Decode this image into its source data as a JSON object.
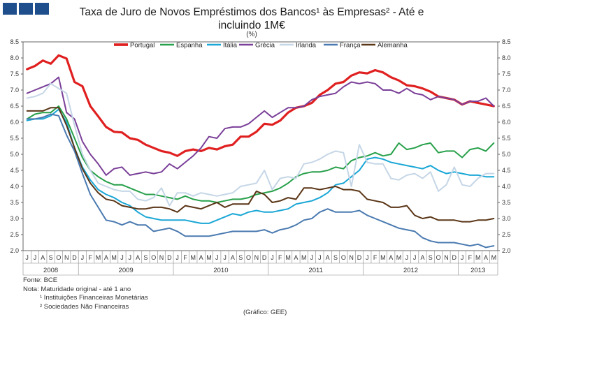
{
  "header": {
    "title_line1": "Taxa de Juro de Novos Empréstimos dos Bancos¹ às Empresas² - Até e",
    "title_line2": "incluindo 1M€",
    "unit": "(%)"
  },
  "notes": {
    "source": "Fonte: BCE",
    "note": "Nota: Maturidade original - até 1 ano",
    "footnote1": "¹ Instituições Financeiras Monetárias",
    "footnote2": "² Sociedades Não Financeiras",
    "credit": "(Gráfico:  GEE)"
  },
  "chart_data": {
    "type": "line",
    "title": "Taxa de Juro de Novos Empréstimos dos Bancos às Empresas - Até e incluindo 1M€",
    "ylabel": "(%)",
    "ylim": [
      2.0,
      8.5
    ],
    "yticks": [
      "2.0",
      "2.5",
      "3.0",
      "3.5",
      "4.0",
      "4.5",
      "5.0",
      "5.5",
      "6.0",
      "6.5",
      "7.0",
      "7.5",
      "8.0",
      "8.5"
    ],
    "month_labels": [
      "J",
      "J",
      "A",
      "S",
      "O",
      "N",
      "D",
      "J",
      "F",
      "M",
      "A",
      "M",
      "J",
      "J",
      "A",
      "S",
      "O",
      "N",
      "D",
      "J",
      "F",
      "M",
      "A",
      "M",
      "J",
      "J",
      "A",
      "S",
      "O",
      "N",
      "D",
      "J",
      "F",
      "M",
      "A",
      "M",
      "J",
      "J",
      "A",
      "S",
      "O",
      "N",
      "D",
      "J",
      "F",
      "M",
      "A",
      "M",
      "J",
      "J",
      "A",
      "S",
      "O",
      "N",
      "D",
      "J",
      "F",
      "M",
      "A",
      "M"
    ],
    "years": [
      {
        "label": "2008",
        "start": 0,
        "end": 6
      },
      {
        "label": "2009",
        "start": 7,
        "end": 18
      },
      {
        "label": "2010",
        "start": 19,
        "end": 30
      },
      {
        "label": "2011",
        "start": 31,
        "end": 42
      },
      {
        "label": "2012",
        "start": 43,
        "end": 54
      },
      {
        "label": "2013",
        "start": 55,
        "end": 59
      }
    ],
    "legend_position": "top",
    "series": [
      {
        "name": "Portugal",
        "color": "#e02020",
        "width": 3.2,
        "values": [
          7.65,
          7.75,
          7.92,
          7.82,
          8.08,
          7.98,
          7.25,
          7.12,
          6.5,
          6.18,
          5.85,
          5.7,
          5.68,
          5.5,
          5.45,
          5.3,
          5.2,
          5.1,
          5.05,
          4.95,
          5.1,
          5.15,
          5.1,
          5.2,
          5.15,
          5.25,
          5.3,
          5.55,
          5.55,
          5.7,
          5.95,
          5.92,
          6.05,
          6.3,
          6.45,
          6.5,
          6.6,
          6.85,
          7.0,
          7.2,
          7.25,
          7.45,
          7.55,
          7.52,
          7.62,
          7.55,
          7.4,
          7.3,
          7.15,
          7.12,
          7.05,
          6.95,
          6.8,
          6.75,
          6.7,
          6.55,
          6.65,
          6.6,
          6.55,
          6.5
        ]
      },
      {
        "name": "Espanha",
        "color": "#27a04a",
        "width": 2,
        "values": [
          6.1,
          6.25,
          6.3,
          6.3,
          6.5,
          6.1,
          5.5,
          4.9,
          4.5,
          4.3,
          4.15,
          4.05,
          4.05,
          3.95,
          3.85,
          3.75,
          3.75,
          3.7,
          3.65,
          3.6,
          3.7,
          3.6,
          3.55,
          3.55,
          3.5,
          3.55,
          3.6,
          3.6,
          3.65,
          3.75,
          3.8,
          3.85,
          3.95,
          4.1,
          4.3,
          4.4,
          4.45,
          4.45,
          4.5,
          4.6,
          4.55,
          4.8,
          4.9,
          4.95,
          5.05,
          4.95,
          5.0,
          5.35,
          5.15,
          5.2,
          5.3,
          5.35,
          5.05,
          5.1,
          5.1,
          4.9,
          5.15,
          5.2,
          5.1,
          5.35
        ]
      },
      {
        "name": "Itália",
        "color": "#1aa7d6",
        "width": 2,
        "values": [
          6.05,
          6.1,
          6.1,
          6.2,
          6.4,
          6.0,
          5.2,
          4.6,
          4.2,
          3.9,
          3.75,
          3.65,
          3.5,
          3.4,
          3.2,
          3.05,
          3.0,
          2.95,
          2.95,
          2.95,
          2.95,
          2.9,
          2.85,
          2.85,
          2.95,
          3.05,
          3.15,
          3.1,
          3.2,
          3.25,
          3.2,
          3.2,
          3.25,
          3.3,
          3.45,
          3.5,
          3.55,
          3.65,
          3.8,
          4.05,
          4.1,
          4.3,
          4.5,
          4.85,
          4.9,
          4.85,
          4.75,
          4.7,
          4.65,
          4.6,
          4.55,
          4.65,
          4.5,
          4.4,
          4.45,
          4.4,
          4.35,
          4.35,
          4.3,
          4.3
        ]
      },
      {
        "name": "Grécia",
        "color": "#7a3f98",
        "width": 2,
        "values": [
          6.9,
          7.0,
          7.1,
          7.2,
          7.4,
          6.3,
          6.1,
          5.4,
          5.0,
          4.7,
          4.35,
          4.55,
          4.6,
          4.35,
          4.4,
          4.45,
          4.4,
          4.45,
          4.7,
          4.55,
          4.75,
          4.95,
          5.2,
          5.55,
          5.5,
          5.8,
          5.85,
          5.85,
          5.95,
          6.15,
          6.35,
          6.15,
          6.3,
          6.45,
          6.45,
          6.5,
          6.7,
          6.8,
          6.85,
          6.9,
          7.1,
          7.25,
          7.2,
          7.25,
          7.2,
          7.0,
          7.0,
          6.9,
          7.05,
          6.9,
          6.85,
          6.7,
          6.8,
          6.75,
          6.7,
          6.55,
          6.65,
          6.65,
          6.75,
          6.5
        ]
      },
      {
        "name": "Irlanda",
        "color": "#c5d6e6",
        "width": 2,
        "values": [
          6.75,
          6.8,
          6.9,
          7.2,
          7.05,
          6.9,
          5.9,
          5.0,
          4.5,
          4.1,
          4.0,
          3.9,
          3.85,
          3.85,
          3.6,
          3.55,
          3.65,
          3.95,
          3.4,
          3.8,
          3.8,
          3.7,
          3.8,
          3.75,
          3.7,
          3.75,
          3.8,
          4.0,
          4.05,
          4.1,
          4.5,
          3.9,
          4.25,
          4.3,
          4.25,
          4.7,
          4.75,
          4.85,
          5.0,
          5.1,
          5.05,
          4.0,
          5.3,
          4.75,
          4.7,
          4.7,
          4.25,
          4.2,
          4.35,
          4.4,
          4.25,
          4.45,
          3.85,
          4.05,
          4.6,
          4.05,
          4.0,
          4.25,
          4.4,
          4.4
        ]
      },
      {
        "name": "França",
        "color": "#4a7ab0",
        "width": 2,
        "values": [
          6.1,
          6.1,
          6.15,
          6.25,
          6.2,
          5.6,
          5.1,
          4.4,
          3.75,
          3.35,
          2.95,
          2.9,
          2.8,
          2.9,
          2.8,
          2.8,
          2.6,
          2.65,
          2.7,
          2.6,
          2.45,
          2.45,
          2.45,
          2.45,
          2.5,
          2.55,
          2.6,
          2.6,
          2.6,
          2.6,
          2.65,
          2.55,
          2.65,
          2.7,
          2.8,
          2.95,
          3.0,
          3.2,
          3.3,
          3.2,
          3.2,
          3.2,
          3.25,
          3.1,
          3.0,
          2.9,
          2.8,
          2.7,
          2.65,
          2.6,
          2.4,
          2.3,
          2.25,
          2.25,
          2.25,
          2.2,
          2.15,
          2.2,
          2.1,
          2.15
        ]
      },
      {
        "name": "Alemanha",
        "color": "#5a3516",
        "width": 2,
        "values": [
          6.35,
          6.35,
          6.35,
          6.45,
          6.45,
          5.9,
          5.2,
          4.55,
          4.1,
          3.8,
          3.6,
          3.55,
          3.4,
          3.35,
          3.3,
          3.3,
          3.35,
          3.35,
          3.3,
          3.2,
          3.4,
          3.35,
          3.3,
          3.4,
          3.5,
          3.35,
          3.45,
          3.45,
          3.45,
          3.85,
          3.75,
          3.5,
          3.55,
          3.65,
          3.6,
          3.95,
          3.95,
          3.9,
          3.95,
          4.0,
          3.9,
          3.9,
          3.85,
          3.6,
          3.55,
          3.5,
          3.35,
          3.35,
          3.4,
          3.1,
          3.0,
          3.05,
          2.95,
          2.95,
          2.95,
          2.9,
          2.9,
          2.95,
          2.95,
          3.0
        ]
      }
    ]
  }
}
